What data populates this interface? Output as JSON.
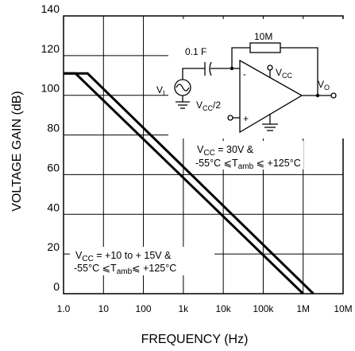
{
  "chart_data": {
    "type": "line",
    "xlabel": "FREQUENCY (Hz)",
    "ylabel": "VOLTAGE GAIN (dB)",
    "x_scale": "log",
    "xlim": [
      1,
      10000000
    ],
    "ylim": [
      0,
      140
    ],
    "grid": true,
    "x_ticks": [
      {
        "value": 1,
        "label": "1.0"
      },
      {
        "value": 10,
        "label": "10"
      },
      {
        "value": 100,
        "label": "100"
      },
      {
        "value": 1000,
        "label": "1k"
      },
      {
        "value": 10000,
        "label": "10k"
      },
      {
        "value": 100000,
        "label": "100k"
      },
      {
        "value": 1000000,
        "label": "1M"
      },
      {
        "value": 10000000,
        "label": "10M"
      }
    ],
    "y_ticks": [
      {
        "value": 0,
        "label": "0"
      },
      {
        "value": 20,
        "label": "20"
      },
      {
        "value": 40,
        "label": "40"
      },
      {
        "value": 60,
        "label": "60"
      },
      {
        "value": 80,
        "label": "80"
      },
      {
        "value": 100,
        "label": "100"
      },
      {
        "value": 120,
        "label": "120"
      },
      {
        "value": 140,
        "label": "140"
      }
    ],
    "series": [
      {
        "x": [
          1,
          2,
          1000000
        ],
        "y": [
          111,
          111,
          0
        ]
      },
      {
        "x": [
          1,
          4,
          1800000
        ],
        "y": [
          111,
          111,
          0
        ]
      }
    ],
    "annotations": [
      {
        "main1": "V",
        "sub1": "CC",
        "rest1": " = 30V &",
        "line2_a": "-55°C ⩽T",
        "line2_sub": "amb",
        "line2_b": " ⩽ +125°C"
      },
      {
        "main1": "V",
        "sub1": "CC",
        "rest1": " = +10 to + 15V &",
        "line2_a": "-55°C ⩽T",
        "line2_sub": "amb",
        "line2_b": "⩽ +125°C"
      }
    ],
    "circuit": {
      "cap_label": "0.1  F",
      "res_label": "10M",
      "vi_main": "V",
      "vi_sub": "I",
      "vcc2_main": "V",
      "vcc2_sub": "CC",
      "vcc2_tail": "/2",
      "vcc_main": "V",
      "vcc_sub": "CC",
      "vo_main": "V",
      "vo_sub": "O",
      "minus": "-",
      "plus": "+"
    }
  }
}
